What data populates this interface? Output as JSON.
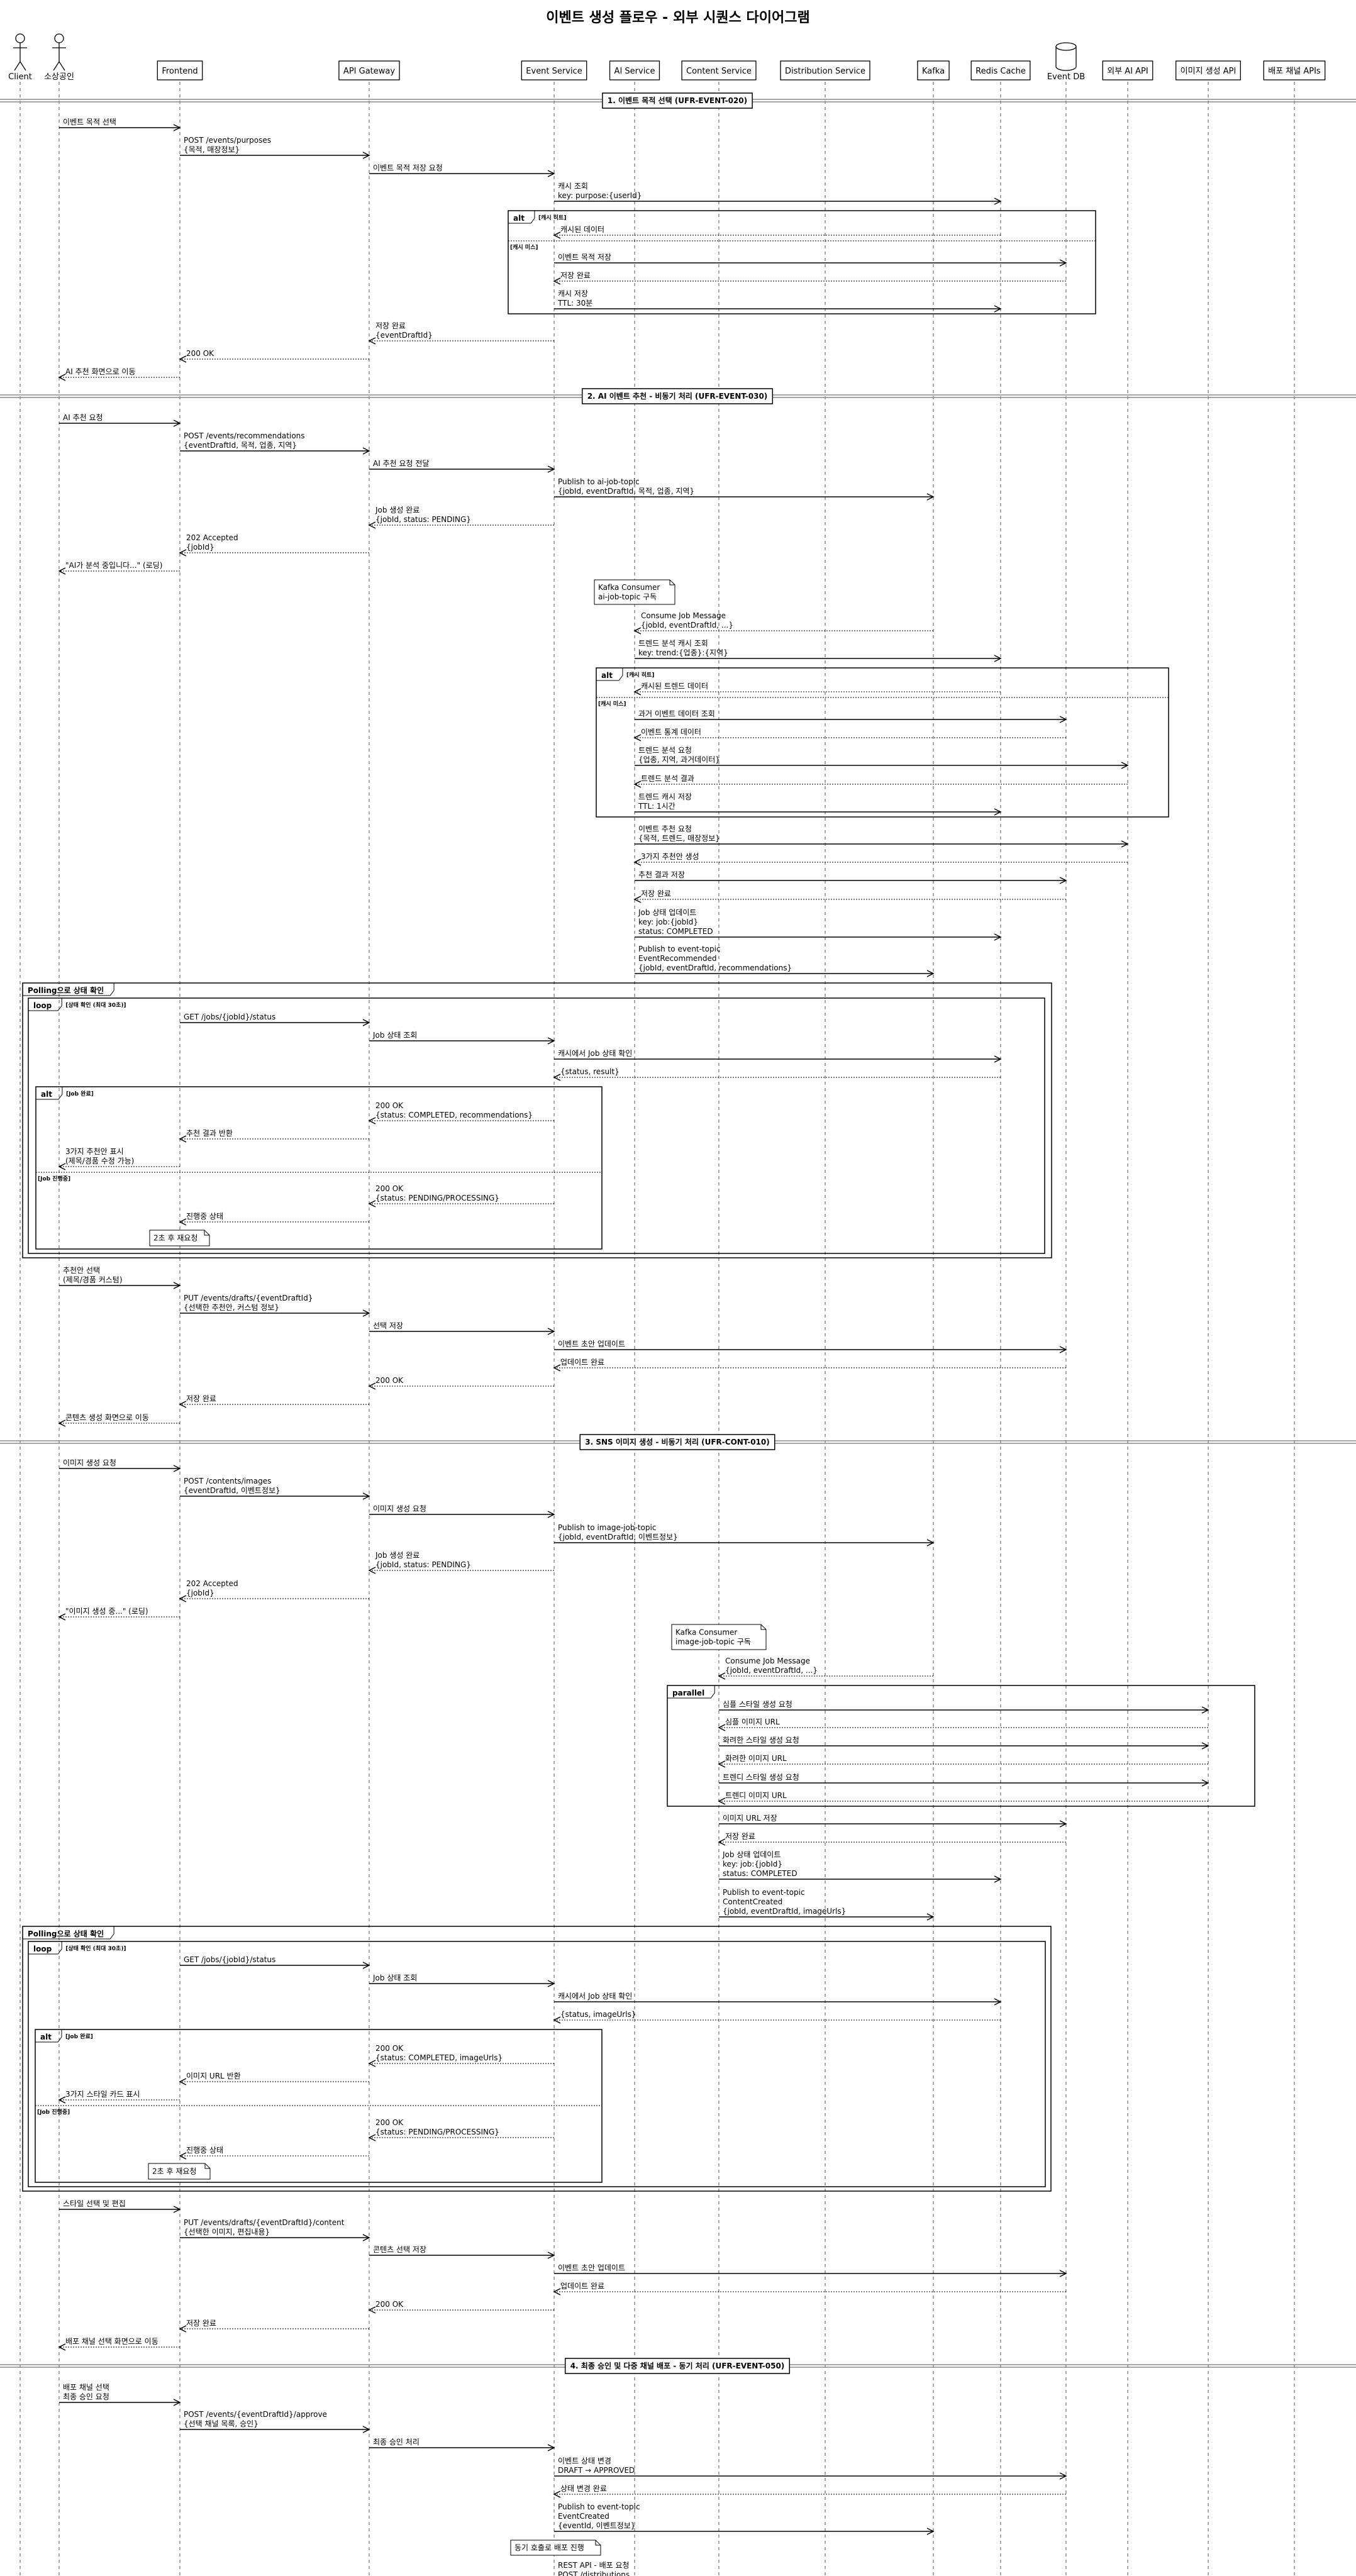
{
  "title": "이벤트 생성 플로우 - 외부 시퀀스 다이어그램",
  "colors": {
    "line": "#000000",
    "lifeline": "#555555",
    "divider": "#888888",
    "background": "#ffffff"
  },
  "participants": [
    {
      "name": "Client",
      "kind": "actor"
    },
    {
      "name": "소상공인",
      "kind": "actor"
    },
    {
      "name": "Frontend",
      "kind": "participant"
    },
    {
      "name": "API Gateway",
      "kind": "participant"
    },
    {
      "name": "Event Service",
      "kind": "participant"
    },
    {
      "name": "AI Service",
      "kind": "participant"
    },
    {
      "name": "Content Service",
      "kind": "participant"
    },
    {
      "name": "Distribution Service",
      "kind": "participant"
    },
    {
      "name": "Kafka",
      "kind": "participant"
    },
    {
      "name": "Redis Cache",
      "kind": "participant"
    },
    {
      "name": "Event DB",
      "kind": "database"
    },
    {
      "name": "외부 AI API",
      "kind": "participant"
    },
    {
      "name": "이미지 생성 API",
      "kind": "participant"
    },
    {
      "name": "배포 채널 APIs",
      "kind": "participant"
    }
  ],
  "events": [
    {
      "type": "divider",
      "text": "1. 이벤트 목적 선택 (UFR-EVENT-020)"
    },
    {
      "type": "message",
      "from": 1,
      "to": 2,
      "dashed": false,
      "lines": [
        "이벤트 목적 선택"
      ]
    },
    {
      "type": "message",
      "from": 2,
      "to": 3,
      "dashed": false,
      "lines": [
        "POST /events/purposes",
        "{목적, 매장정보}"
      ]
    },
    {
      "type": "message",
      "from": 3,
      "to": 4,
      "dashed": false,
      "lines": [
        "이벤트 목적 저장 요청"
      ]
    },
    {
      "type": "message",
      "from": 4,
      "to": 9,
      "dashed": false,
      "lines": [
        "캐시 조회",
        "key: purpose:{userId}"
      ]
    },
    {
      "type": "fragment",
      "label": "alt",
      "condition": "[캐시 히트]"
    },
    {
      "type": "message",
      "from": 9,
      "to": 4,
      "dashed": true,
      "lines": [
        "캐시된 데이터"
      ]
    },
    {
      "type": "else",
      "condition": "[캐시 미스]"
    },
    {
      "type": "message",
      "from": 4,
      "to": 10,
      "dashed": false,
      "lines": [
        "이벤트 목적 저장"
      ]
    },
    {
      "type": "message",
      "from": 10,
      "to": 4,
      "dashed": true,
      "lines": [
        "저장 완료"
      ]
    },
    {
      "type": "message",
      "from": 4,
      "to": 9,
      "dashed": false,
      "lines": [
        "캐시 저장",
        "TTL: 30분"
      ]
    },
    {
      "type": "message",
      "from": 4,
      "to": 3,
      "dashed": true,
      "lines": [
        "저장 완료",
        "{eventDraftId}"
      ]
    },
    {
      "type": "message",
      "from": 3,
      "to": 2,
      "dashed": true,
      "lines": [
        "200 OK"
      ]
    },
    {
      "type": "message",
      "from": 2,
      "to": 1,
      "dashed": true,
      "lines": [
        "AI 추천 화면으로 이동"
      ]
    },
    {
      "type": "divider",
      "text": "2. AI 이벤트 추천 - 비동기 처리 (UFR-EVENT-030)"
    },
    {
      "type": "message",
      "from": 1,
      "to": 2,
      "dashed": false,
      "lines": [
        "AI 추천 요청"
      ]
    },
    {
      "type": "message",
      "from": 2,
      "to": 3,
      "dashed": false,
      "lines": [
        "POST /events/recommendations",
        "{eventDraftId, 목적, 업종, 지역}"
      ]
    },
    {
      "type": "message",
      "from": 3,
      "to": 4,
      "dashed": false,
      "lines": [
        "AI 추천 요청 전달"
      ]
    },
    {
      "type": "message",
      "from": 4,
      "to": 8,
      "dashed": false,
      "lines": [
        "Publish to ai-job-topic",
        "{jobId, eventDraftId, 목적, 업종, 지역}"
      ]
    },
    {
      "type": "message",
      "from": 4,
      "to": 3,
      "dashed": true,
      "lines": [
        "Job 생성 완료",
        "{jobId, status: PENDING}"
      ]
    },
    {
      "type": "message",
      "from": 3,
      "to": 2,
      "dashed": true,
      "lines": [
        "202 Accepted",
        "{jobId}"
      ]
    },
    {
      "type": "message",
      "from": 2,
      "to": 1,
      "dashed": true,
      "lines": [
        "\"AI가 분석 중입니다...\" (로딩)"
      ]
    },
    {
      "type": "note",
      "lines": [
        "Kafka Consumer",
        "ai-job-topic 구독"
      ]
    },
    {
      "type": "message",
      "from": 8,
      "to": 5,
      "dashed": true,
      "lines": [
        "Consume Job Message",
        "{jobId, eventDraftId, ...}"
      ]
    },
    {
      "type": "message",
      "from": 5,
      "to": 9,
      "dashed": false,
      "lines": [
        "트렌드 분석 캐시 조회",
        "key: trend:{업종}:{지역}"
      ]
    },
    {
      "type": "fragment",
      "label": "alt",
      "condition": "[캐시 히트]"
    },
    {
      "type": "message",
      "from": 9,
      "to": 5,
      "dashed": true,
      "lines": [
        "캐시된 트렌드 데이터"
      ]
    },
    {
      "type": "else",
      "condition": "[캐시 미스]"
    },
    {
      "type": "message",
      "from": 5,
      "to": 10,
      "dashed": false,
      "lines": [
        "과거 이벤트 데이터 조회"
      ]
    },
    {
      "type": "message",
      "from": 10,
      "to": 5,
      "dashed": true,
      "lines": [
        "이벤트 통계 데이터"
      ]
    },
    {
      "type": "message",
      "from": 5,
      "to": 11,
      "dashed": false,
      "lines": [
        "트렌드 분석 요청",
        "{업종, 지역, 과거데이터}"
      ]
    },
    {
      "type": "message",
      "from": 11,
      "to": 5,
      "dashed": true,
      "lines": [
        "트렌드 분석 결과"
      ]
    },
    {
      "type": "message",
      "from": 5,
      "to": 9,
      "dashed": false,
      "lines": [
        "트렌드 캐시 저장",
        "TTL: 1시간"
      ]
    },
    {
      "type": "message",
      "from": 5,
      "to": 11,
      "dashed": false,
      "lines": [
        "이벤트 추천 요청",
        "{목적, 트렌드, 매장정보}"
      ]
    },
    {
      "type": "message",
      "from": 11,
      "to": 5,
      "dashed": true,
      "lines": [
        "3가지 추천안 생성"
      ]
    },
    {
      "type": "message",
      "from": 5,
      "to": 10,
      "dashed": false,
      "lines": [
        "추천 결과 저장"
      ]
    },
    {
      "type": "message",
      "from": 10,
      "to": 5,
      "dashed": true,
      "lines": [
        "저장 완료"
      ]
    },
    {
      "type": "message",
      "from": 5,
      "to": 9,
      "dashed": false,
      "lines": [
        "Job 상태 업데이트",
        "key: job:{jobId}",
        "status: COMPLETED"
      ]
    },
    {
      "type": "message",
      "from": 5,
      "to": 8,
      "dashed": false,
      "lines": [
        "Publish to event-topic",
        "EventRecommended",
        "{jobId, eventDraftId, recommendations}"
      ]
    },
    {
      "type": "fragment",
      "label": "Polling으로 상태 확인",
      "condition": ""
    },
    {
      "type": "fragment",
      "label": "loop",
      "condition": "[상태 확인 (최대 30초)]"
    },
    {
      "type": "message",
      "from": 2,
      "to": 3,
      "dashed": false,
      "lines": [
        "GET /jobs/{jobId}/status"
      ]
    },
    {
      "type": "message",
      "from": 3,
      "to": 4,
      "dashed": false,
      "lines": [
        "Job 상태 조회"
      ]
    },
    {
      "type": "message",
      "from": 4,
      "to": 9,
      "dashed": false,
      "lines": [
        "캐시에서 Job 상태 확인"
      ]
    },
    {
      "type": "message",
      "from": 9,
      "to": 4,
      "dashed": true,
      "lines": [
        "{status, result}"
      ]
    },
    {
      "type": "fragment",
      "label": "alt",
      "condition": "[Job 완료]"
    },
    {
      "type": "message",
      "from": 4,
      "to": 3,
      "dashed": true,
      "lines": [
        "200 OK",
        "{status: COMPLETED, recommendations}"
      ]
    },
    {
      "type": "message",
      "from": 3,
      "to": 2,
      "dashed": true,
      "lines": [
        "추천 결과 반환"
      ]
    },
    {
      "type": "message",
      "from": 2,
      "to": 1,
      "dashed": true,
      "lines": [
        "3가지 추천안 표시",
        "(제목/경품 수정 가능)"
      ]
    },
    {
      "type": "else",
      "condition": "[Job 진행중]"
    },
    {
      "type": "message",
      "from": 4,
      "to": 3,
      "dashed": true,
      "lines": [
        "200 OK",
        "{status: PENDING/PROCESSING}"
      ]
    },
    {
      "type": "message",
      "from": 3,
      "to": 2,
      "dashed": true,
      "lines": [
        "진행중 상태"
      ]
    },
    {
      "type": "note",
      "lines": [
        "2초 후 재요청"
      ]
    },
    {
      "type": "message",
      "from": 1,
      "to": 2,
      "dashed": false,
      "lines": [
        "추천안 선택",
        "(제목/경품 커스텀)"
      ]
    },
    {
      "type": "message",
      "from": 2,
      "to": 3,
      "dashed": false,
      "lines": [
        "PUT /events/drafts/{eventDraftId}",
        "{선택한 추천안, 커스텀 정보}"
      ]
    },
    {
      "type": "message",
      "from": 3,
      "to": 4,
      "dashed": false,
      "lines": [
        "선택 저장"
      ]
    },
    {
      "type": "message",
      "from": 4,
      "to": 10,
      "dashed": false,
      "lines": [
        "이벤트 초안 업데이트"
      ]
    },
    {
      "type": "message",
      "from": 10,
      "to": 4,
      "dashed": true,
      "lines": [
        "업데이트 완료"
      ]
    },
    {
      "type": "message",
      "from": 4,
      "to": 3,
      "dashed": true,
      "lines": [
        "200 OK"
      ]
    },
    {
      "type": "message",
      "from": 3,
      "to": 2,
      "dashed": true,
      "lines": [
        "저장 완료"
      ]
    },
    {
      "type": "message",
      "from": 2,
      "to": 1,
      "dashed": true,
      "lines": [
        "콘텐츠 생성 화면으로 이동"
      ]
    },
    {
      "type": "divider",
      "text": "3. SNS 이미지 생성 - 비동기 처리 (UFR-CONT-010)"
    },
    {
      "type": "message",
      "from": 1,
      "to": 2,
      "dashed": false,
      "lines": [
        "이미지 생성 요청"
      ]
    },
    {
      "type": "message",
      "from": 2,
      "to": 3,
      "dashed": false,
      "lines": [
        "POST /contents/images",
        "{eventDraftId, 이벤트정보}"
      ]
    },
    {
      "type": "message",
      "from": 3,
      "to": 4,
      "dashed": false,
      "lines": [
        "이미지 생성 요청"
      ]
    },
    {
      "type": "message",
      "from": 4,
      "to": 8,
      "dashed": false,
      "lines": [
        "Publish to image-job-topic",
        "{jobId, eventDraftId, 이벤트정보}"
      ]
    },
    {
      "type": "message",
      "from": 4,
      "to": 3,
      "dashed": true,
      "lines": [
        "Job 생성 완료",
        "{jobId, status: PENDING}"
      ]
    },
    {
      "type": "message",
      "from": 3,
      "to": 2,
      "dashed": true,
      "lines": [
        "202 Accepted",
        "{jobId}"
      ]
    },
    {
      "type": "message",
      "from": 2,
      "to": 1,
      "dashed": true,
      "lines": [
        "\"이미지 생성 중...\" (로딩)"
      ]
    },
    {
      "type": "note",
      "lines": [
        "Kafka Consumer",
        "image-job-topic 구독"
      ]
    },
    {
      "type": "message",
      "from": 8,
      "to": 6,
      "dashed": true,
      "lines": [
        "Consume Job Message",
        "{jobId, eventDraftId, ...}"
      ]
    },
    {
      "type": "fragment",
      "label": "parallel",
      "condition": ""
    },
    {
      "type": "message",
      "from": 6,
      "to": 12,
      "dashed": false,
      "lines": [
        "심플 스타일 생성 요청"
      ]
    },
    {
      "type": "message",
      "from": 12,
      "to": 6,
      "dashed": true,
      "lines": [
        "심플 이미지 URL"
      ]
    },
    {
      "type": "message",
      "from": 6,
      "to": 12,
      "dashed": false,
      "lines": [
        "화려한 스타일 생성 요청"
      ]
    },
    {
      "type": "message",
      "from": 12,
      "to": 6,
      "dashed": true,
      "lines": [
        "화려한 이미지 URL"
      ]
    },
    {
      "type": "message",
      "from": 6,
      "to": 12,
      "dashed": false,
      "lines": [
        "트렌디 스타일 생성 요청"
      ]
    },
    {
      "type": "message",
      "from": 12,
      "to": 6,
      "dashed": true,
      "lines": [
        "트렌디 이미지 URL"
      ]
    },
    {
      "type": "message",
      "from": 6,
      "to": 10,
      "dashed": false,
      "lines": [
        "이미지 URL 저장"
      ]
    },
    {
      "type": "message",
      "from": 10,
      "to": 6,
      "dashed": true,
      "lines": [
        "저장 완료"
      ]
    },
    {
      "type": "message",
      "from": 6,
      "to": 9,
      "dashed": false,
      "lines": [
        "Job 상태 업데이트",
        "key: job:{jobId}",
        "status: COMPLETED"
      ]
    },
    {
      "type": "message",
      "from": 6,
      "to": 8,
      "dashed": false,
      "lines": [
        "Publish to event-topic",
        "ContentCreated",
        "{jobId, eventDraftId, imageUrls}"
      ]
    },
    {
      "type": "fragment",
      "label": "Polling으로 상태 확인",
      "condition": ""
    },
    {
      "type": "fragment",
      "label": "loop",
      "condition": "[상태 확인 (최대 30초)]"
    },
    {
      "type": "message",
      "from": 2,
      "to": 3,
      "dashed": false,
      "lines": [
        "GET /jobs/{jobId}/status"
      ]
    },
    {
      "type": "message",
      "from": 3,
      "to": 4,
      "dashed": false,
      "lines": [
        "Job 상태 조회"
      ]
    },
    {
      "type": "message",
      "from": 4,
      "to": 9,
      "dashed": false,
      "lines": [
        "캐시에서 Job 상태 확인"
      ]
    },
    {
      "type": "message",
      "from": 9,
      "to": 4,
      "dashed": true,
      "lines": [
        "{status, imageUrls}"
      ]
    },
    {
      "type": "fragment",
      "label": "alt",
      "condition": "[Job 완료]"
    },
    {
      "type": "message",
      "from": 4,
      "to": 3,
      "dashed": true,
      "lines": [
        "200 OK",
        "{status: COMPLETED, imageUrls}"
      ]
    },
    {
      "type": "message",
      "from": 3,
      "to": 2,
      "dashed": true,
      "lines": [
        "이미지 URL 반환"
      ]
    },
    {
      "type": "message",
      "from": 2,
      "to": 1,
      "dashed": true,
      "lines": [
        "3가지 스타일 카드 표시"
      ]
    },
    {
      "type": "else",
      "condition": "[Job 진행중]"
    },
    {
      "type": "message",
      "from": 4,
      "to": 3,
      "dashed": true,
      "lines": [
        "200 OK",
        "{status: PENDING/PROCESSING}"
      ]
    },
    {
      "type": "message",
      "from": 3,
      "to": 2,
      "dashed": true,
      "lines": [
        "진행중 상태"
      ]
    },
    {
      "type": "note",
      "lines": [
        "2초 후 재요청"
      ]
    },
    {
      "type": "message",
      "from": 1,
      "to": 2,
      "dashed": false,
      "lines": [
        "스타일 선택 및 편집"
      ]
    },
    {
      "type": "message",
      "from": 2,
      "to": 3,
      "dashed": false,
      "lines": [
        "PUT /events/drafts/{eventDraftId}/content",
        "{선택한 이미지, 편집내용}"
      ]
    },
    {
      "type": "message",
      "from": 3,
      "to": 4,
      "dashed": false,
      "lines": [
        "콘텐츠 선택 저장"
      ]
    },
    {
      "type": "message",
      "from": 4,
      "to": 10,
      "dashed": false,
      "lines": [
        "이벤트 초안 업데이트"
      ]
    },
    {
      "type": "message",
      "from": 10,
      "to": 4,
      "dashed": true,
      "lines": [
        "업데이트 완료"
      ]
    },
    {
      "type": "message",
      "from": 4,
      "to": 3,
      "dashed": true,
      "lines": [
        "200 OK"
      ]
    },
    {
      "type": "message",
      "from": 3,
      "to": 2,
      "dashed": true,
      "lines": [
        "저장 완료"
      ]
    },
    {
      "type": "message",
      "from": 2,
      "to": 1,
      "dashed": true,
      "lines": [
        "배포 채널 선택 화면으로 이동"
      ]
    },
    {
      "type": "divider",
      "text": "4. 최종 승인 및 다중 채널 배포 - 동기 처리 (UFR-EVENT-050)"
    },
    {
      "type": "message",
      "from": 1,
      "to": 2,
      "dashed": false,
      "lines": [
        "배포 채널 선택",
        "최종 승인 요청"
      ]
    },
    {
      "type": "message",
      "from": 2,
      "to": 3,
      "dashed": false,
      "lines": [
        "POST /events/{eventDraftId}/approve",
        "{선택 채널 목록, 승인}"
      ]
    },
    {
      "type": "message",
      "from": 3,
      "to": 4,
      "dashed": false,
      "lines": [
        "최종 승인 처리"
      ]
    },
    {
      "type": "message",
      "from": 4,
      "to": 10,
      "dashed": false,
      "lines": [
        "이벤트 상태 변경",
        "DRAFT → APPROVED"
      ]
    },
    {
      "type": "message",
      "from": 10,
      "to": 4,
      "dashed": true,
      "lines": [
        "상태 변경 완료"
      ]
    },
    {
      "type": "message",
      "from": 4,
      "to": 8,
      "dashed": false,
      "lines": [
        "Publish to event-topic",
        "EventCreated",
        "{eventId, 이벤트정보}"
      ]
    },
    {
      "type": "note",
      "lines": [
        "동기 호출로 배포 진행"
      ]
    },
    {
      "type": "message",
      "from": 4,
      "to": 7,
      "dashed": false,
      "lines": [
        "REST API - 배포 요청",
        "POST /distributions"
      ]
    }
  ]
}
